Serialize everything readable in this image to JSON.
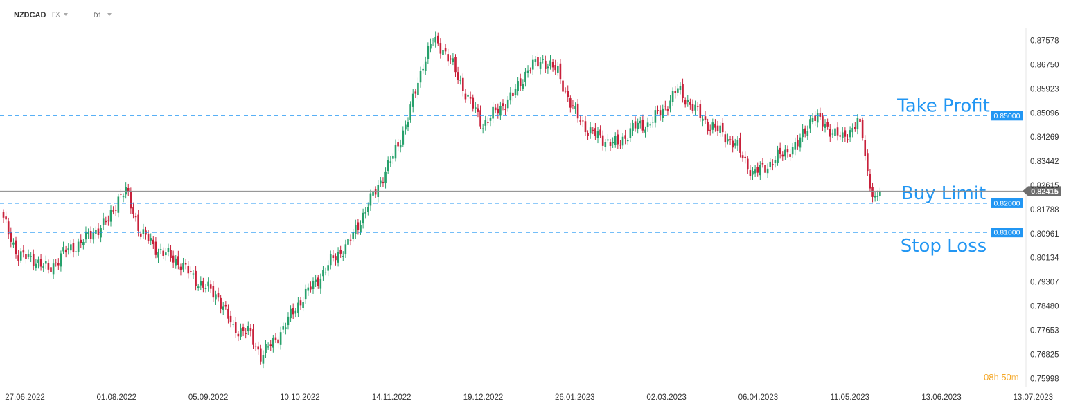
{
  "header": {
    "symbol": "NZDCAD",
    "market": "FX",
    "timeframe": "D1"
  },
  "colors": {
    "bull": "#26a06b",
    "bear": "#c8203a",
    "level": "#2196f3",
    "text": "#333333",
    "current_price_bg": "#6d6d6d",
    "countdown": "#f5a623"
  },
  "countdown": {
    "h": "08",
    "h_unit": "h",
    "m": "50",
    "m_unit": "m"
  },
  "chart_data": {
    "type": "candlestick",
    "symbol": "NZDCAD",
    "timeframe": "D1",
    "ylim": [
      0.7565,
      0.883
    ],
    "y_ticks": [
      "0.87578",
      "0.86750",
      "0.85923",
      "0.85096",
      "0.84269",
      "0.83442",
      "0.82615",
      "0.81788",
      "0.80961",
      "0.80134",
      "0.79307",
      "0.78480",
      "0.77653",
      "0.76825",
      "0.75998"
    ],
    "x_ticks": [
      "27.06.2022",
      "01.08.2022",
      "05.09.2022",
      "10.10.2022",
      "14.11.2022",
      "19.12.2022",
      "26.01.2023",
      "02.03.2023",
      "06.04.2023",
      "11.05.2023",
      "13.06.2023",
      "13.07.2023"
    ],
    "current_price": {
      "value": 0.82415,
      "label": "0.82415"
    },
    "levels": [
      {
        "value": 0.85,
        "tag": "0.85000",
        "annotation": "Take Profit"
      },
      {
        "value": 0.82,
        "tag": "0.82000",
        "annotation": "Buy Limit"
      },
      {
        "value": 0.81,
        "tag": "0.81000",
        "annotation": "Stop Loss"
      }
    ],
    "anchors": [
      [
        0,
        0.814
      ],
      [
        6,
        0.802
      ],
      [
        12,
        0.801
      ],
      [
        18,
        0.797
      ],
      [
        24,
        0.803
      ],
      [
        30,
        0.806
      ],
      [
        36,
        0.81
      ],
      [
        42,
        0.814
      ],
      [
        46,
        0.822
      ],
      [
        49,
        0.824
      ],
      [
        55,
        0.81
      ],
      [
        62,
        0.804
      ],
      [
        70,
        0.8
      ],
      [
        78,
        0.793
      ],
      [
        86,
        0.788
      ],
      [
        92,
        0.777
      ],
      [
        98,
        0.776
      ],
      [
        103,
        0.768
      ],
      [
        108,
        0.772
      ],
      [
        114,
        0.78
      ],
      [
        120,
        0.788
      ],
      [
        126,
        0.794
      ],
      [
        132,
        0.801
      ],
      [
        138,
        0.806
      ],
      [
        144,
        0.816
      ],
      [
        150,
        0.826
      ],
      [
        156,
        0.836
      ],
      [
        162,
        0.849
      ],
      [
        168,
        0.868
      ],
      [
        172,
        0.876
      ],
      [
        176,
        0.873
      ],
      [
        180,
        0.867
      ],
      [
        186,
        0.856
      ],
      [
        192,
        0.847
      ],
      [
        198,
        0.852
      ],
      [
        204,
        0.857
      ],
      [
        210,
        0.866
      ],
      [
        216,
        0.869
      ],
      [
        222,
        0.865
      ],
      [
        228,
        0.852
      ],
      [
        234,
        0.845
      ],
      [
        240,
        0.842
      ],
      [
        246,
        0.84
      ],
      [
        252,
        0.846
      ],
      [
        258,
        0.847
      ],
      [
        264,
        0.852
      ],
      [
        270,
        0.859
      ],
      [
        276,
        0.853
      ],
      [
        282,
        0.847
      ],
      [
        288,
        0.844
      ],
      [
        294,
        0.839
      ],
      [
        300,
        0.83
      ],
      [
        306,
        0.833
      ],
      [
        312,
        0.837
      ],
      [
        318,
        0.84
      ],
      [
        324,
        0.85
      ],
      [
        330,
        0.846
      ],
      [
        336,
        0.842
      ],
      [
        342,
        0.848
      ],
      [
        344,
        0.843
      ],
      [
        346,
        0.83
      ],
      [
        349,
        0.821
      ],
      [
        351,
        0.8242
      ]
    ]
  }
}
